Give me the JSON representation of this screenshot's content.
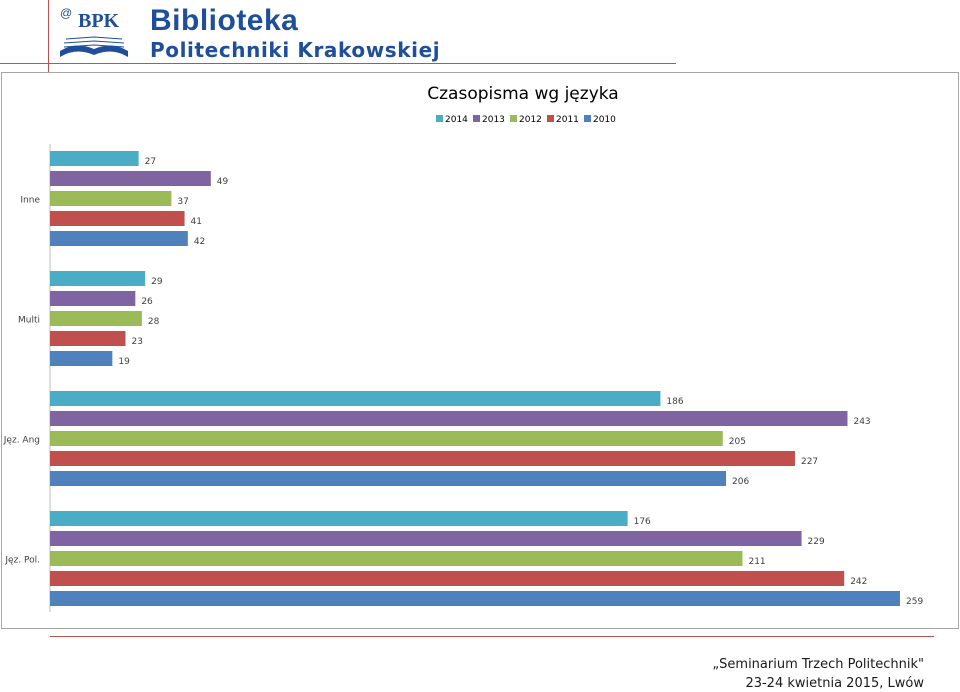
{
  "header": {
    "logo_text": "BPK",
    "title": "Biblioteka",
    "subtitle": "Politechniki Krakowskiej"
  },
  "colors": {
    "2014": "#4bacc6",
    "2013": "#8064a2",
    "2012": "#9bbb59",
    "2011": "#c0504d",
    "2010": "#4f81bd",
    "title_blue": "#1f4e9a",
    "rule_red": "#c0504d"
  },
  "chart_data": {
    "type": "bar",
    "orientation": "horizontal",
    "title": "Czasopisma wg języka",
    "categories": [
      "Inne",
      "Multi",
      "Jęz. Ang",
      "Jęz. Pol."
    ],
    "series": [
      {
        "name": "2014",
        "values": [
          27,
          29,
          186,
          176
        ]
      },
      {
        "name": "2013",
        "values": [
          49,
          26,
          243,
          229
        ]
      },
      {
        "name": "2012",
        "values": [
          37,
          28,
          205,
          211
        ]
      },
      {
        "name": "2011",
        "values": [
          41,
          23,
          227,
          242
        ]
      },
      {
        "name": "2010",
        "values": [
          42,
          19,
          206,
          259
        ]
      }
    ],
    "xlim": [
      0,
      259
    ],
    "legend_position": "top",
    "grid": false,
    "data_labels": true
  },
  "footer": {
    "line1": "„Seminarium Trzech Politechnik\"",
    "line2": "23-24 kwietnia 2015, Lwów"
  }
}
